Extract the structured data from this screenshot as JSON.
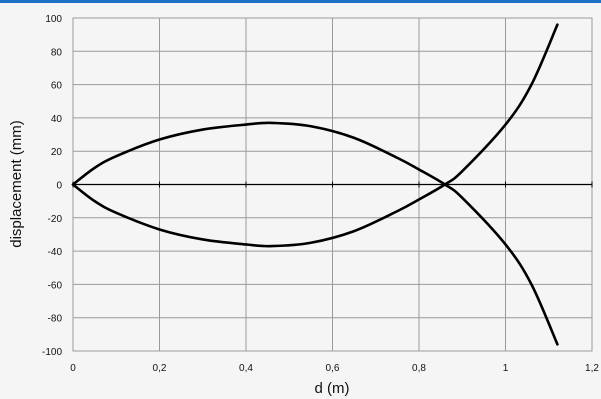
{
  "chart_data": {
    "type": "line",
    "xlabel": "d (m)",
    "ylabel": "displacement (mm)",
    "xlim": [
      0,
      1.2
    ],
    "ylim": [
      -100,
      100
    ],
    "x_ticks": [
      0,
      0.2,
      0.4,
      0.6,
      0.8,
      1,
      1.2
    ],
    "x_tick_labels": [
      "0",
      "0,2",
      "0,4",
      "0,6",
      "0,8",
      "1",
      "1,2"
    ],
    "y_ticks": [
      100,
      80,
      60,
      40,
      20,
      0,
      -20,
      -40,
      -60,
      -80,
      -100
    ],
    "y_tick_labels": [
      "100",
      "80",
      "60",
      "40",
      "20",
      "0",
      "-20",
      "-40",
      "-60",
      "-80",
      "-100"
    ],
    "grid": true,
    "legend": false,
    "line_color": "#000000",
    "series": [
      {
        "x": [
          0,
          0.05,
          0.1,
          0.2,
          0.3,
          0.4,
          0.46,
          0.55,
          0.65,
          0.75,
          0.8,
          0.86,
          0.9,
          1.0,
          1.06,
          1.12
        ],
        "values": [
          0,
          10,
          17,
          27,
          33,
          36,
          37,
          35,
          28,
          16,
          9,
          0,
          -8,
          -36,
          -60,
          -96
        ]
      },
      {
        "x": [
          0,
          0.05,
          0.1,
          0.2,
          0.3,
          0.4,
          0.46,
          0.55,
          0.65,
          0.75,
          0.8,
          0.86,
          0.9,
          1.0,
          1.06,
          1.12
        ],
        "values": [
          0,
          -10,
          -17,
          -27,
          -33,
          -36,
          -37,
          -35,
          -28,
          -16,
          -9,
          0,
          8,
          36,
          60,
          96
        ]
      }
    ]
  }
}
